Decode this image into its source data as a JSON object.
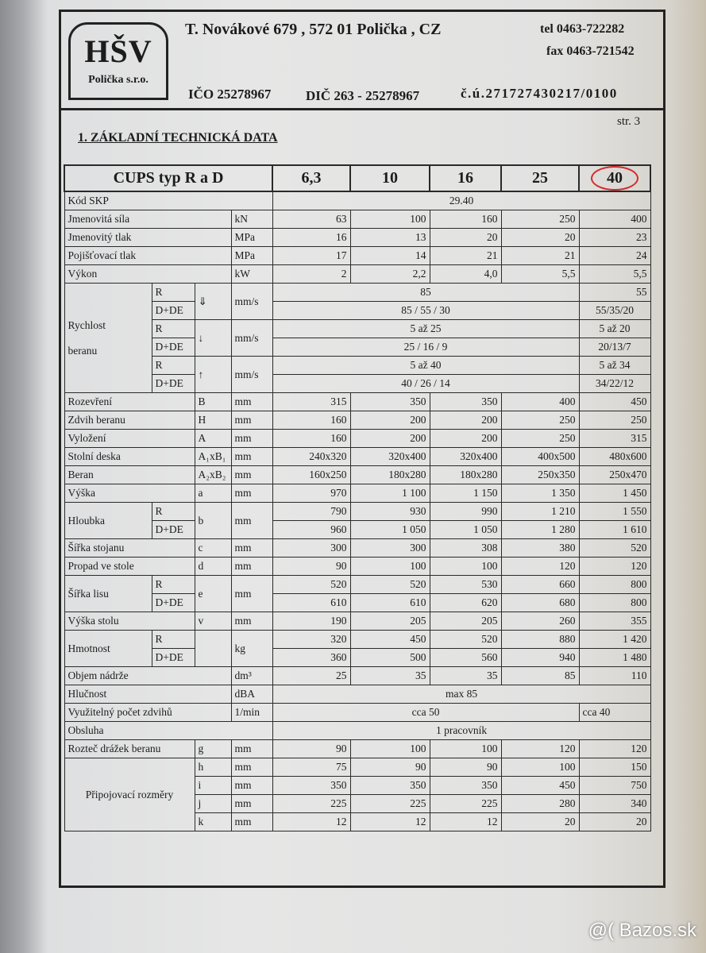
{
  "company": {
    "logo_main": "HŠV",
    "logo_sub": "Polička s.r.o.",
    "address": "T. Novákové 679 ,  572 01 Polička ,  CZ",
    "tel": "tel 0463-722282",
    "fax": "fax 0463-721542",
    "ico": "IČO 25278967",
    "dic": "DIČ  263 - 25278967",
    "account": "č.ú.271727430217/0100"
  },
  "page_number": "str. 3",
  "section_title": "1. ZÁKLADNÍ TECHNICKÁ DATA",
  "highlight_color": "#d42a2a",
  "table": {
    "header": {
      "title": "CUPS typ R a D",
      "models": [
        "6,3",
        "10",
        "16",
        "25",
        "40"
      ],
      "circled_model": "40"
    },
    "rows": [
      {
        "cells": [
          {
            "t": "Kód SKP",
            "span": 4
          },
          {
            "t": "29.40",
            "span": 5,
            "a": "c"
          }
        ]
      },
      {
        "cells": [
          {
            "t": "Jmenovitá síla",
            "span": 3
          },
          {
            "t": "kN"
          },
          {
            "t": "63"
          },
          {
            "t": "100"
          },
          {
            "t": "160"
          },
          {
            "t": "250"
          },
          {
            "t": "400"
          }
        ]
      },
      {
        "cells": [
          {
            "t": "Jmenovitý tlak",
            "span": 3
          },
          {
            "t": "MPa"
          },
          {
            "t": "16"
          },
          {
            "t": "13"
          },
          {
            "t": "20"
          },
          {
            "t": "20"
          },
          {
            "t": "23"
          }
        ]
      },
      {
        "cells": [
          {
            "t": "Pojišťovací tlak",
            "span": 3
          },
          {
            "t": "MPa"
          },
          {
            "t": "17"
          },
          {
            "t": "14"
          },
          {
            "t": "21"
          },
          {
            "t": "21"
          },
          {
            "t": "24"
          }
        ]
      },
      {
        "cells": [
          {
            "t": "Výkon",
            "span": 3
          },
          {
            "t": "kW"
          },
          {
            "t": "2"
          },
          {
            "t": "2,2"
          },
          {
            "t": "4,0"
          },
          {
            "t": "5,5"
          },
          {
            "t": "5,5"
          }
        ]
      },
      {
        "cells": [
          {
            "t": "Rychlost\n\nberanu",
            "rows": 6
          },
          {
            "t": "R"
          },
          {
            "t": "⇓",
            "rows": 2
          },
          {
            "t": "mm/s",
            "rows": 2
          },
          {
            "t": "85",
            "span": 4,
            "a": "c"
          },
          {
            "t": "55"
          }
        ]
      },
      {
        "cells": [
          {
            "t": "D+DE"
          },
          {
            "t": "85 / 55 / 30",
            "span": 4,
            "a": "c"
          },
          {
            "t": "55/35/20",
            "a": "c"
          }
        ]
      },
      {
        "cells": [
          {
            "t": "R"
          },
          {
            "t": "↓",
            "rows": 2
          },
          {
            "t": "mm/s",
            "rows": 2
          },
          {
            "t": "5 až 25",
            "span": 4,
            "a": "c"
          },
          {
            "t": "5 až 20",
            "a": "c"
          }
        ]
      },
      {
        "cells": [
          {
            "t": "D+DE"
          },
          {
            "t": "25 / 16 / 9",
            "span": 4,
            "a": "c"
          },
          {
            "t": "20/13/7",
            "a": "c"
          }
        ]
      },
      {
        "cells": [
          {
            "t": "R"
          },
          {
            "t": "↑",
            "rows": 2
          },
          {
            "t": "mm/s",
            "rows": 2
          },
          {
            "t": "5 až 40",
            "span": 4,
            "a": "c"
          },
          {
            "t": "5 až 34",
            "a": "c"
          }
        ]
      },
      {
        "cells": [
          {
            "t": "D+DE"
          },
          {
            "t": "40 / 26 / 14",
            "span": 4,
            "a": "c"
          },
          {
            "t": "34/22/12",
            "a": "c"
          }
        ]
      },
      {
        "cells": [
          {
            "t": "Rozevření",
            "span": 2
          },
          {
            "t": "B"
          },
          {
            "t": "mm"
          },
          {
            "t": "315"
          },
          {
            "t": "350"
          },
          {
            "t": "350"
          },
          {
            "t": "400"
          },
          {
            "t": "450"
          }
        ]
      },
      {
        "cells": [
          {
            "t": "Zdvih beranu",
            "span": 2
          },
          {
            "t": "H"
          },
          {
            "t": "mm"
          },
          {
            "t": "160"
          },
          {
            "t": "200"
          },
          {
            "t": "200"
          },
          {
            "t": "250"
          },
          {
            "t": "250"
          }
        ]
      },
      {
        "cells": [
          {
            "t": "Vyložení",
            "span": 2
          },
          {
            "t": "A"
          },
          {
            "t": "mm"
          },
          {
            "t": "160"
          },
          {
            "t": "200"
          },
          {
            "t": "200"
          },
          {
            "t": "250"
          },
          {
            "t": "315"
          }
        ]
      },
      {
        "cells": [
          {
            "t": "Stolní deska",
            "span": 2
          },
          {
            "t": "A₁xB₁"
          },
          {
            "t": "mm"
          },
          {
            "t": "240x320"
          },
          {
            "t": "320x400"
          },
          {
            "t": "320x400"
          },
          {
            "t": "400x500"
          },
          {
            "t": "480x600"
          }
        ]
      },
      {
        "cells": [
          {
            "t": "Beran",
            "span": 2
          },
          {
            "t": "A₂xB₂"
          },
          {
            "t": "mm"
          },
          {
            "t": "160x250"
          },
          {
            "t": "180x280"
          },
          {
            "t": "180x280"
          },
          {
            "t": "250x350"
          },
          {
            "t": "250x470"
          }
        ]
      },
      {
        "cells": [
          {
            "t": "Výška",
            "span": 2
          },
          {
            "t": "a"
          },
          {
            "t": "mm"
          },
          {
            "t": "970"
          },
          {
            "t": "1 100"
          },
          {
            "t": "1 150"
          },
          {
            "t": "1 350"
          },
          {
            "t": "1 450"
          }
        ]
      },
      {
        "cells": [
          {
            "t": "Hloubka",
            "rows": 2
          },
          {
            "t": "R"
          },
          {
            "t": "b",
            "rows": 2
          },
          {
            "t": "mm",
            "rows": 2
          },
          {
            "t": "790"
          },
          {
            "t": "930"
          },
          {
            "t": "990"
          },
          {
            "t": "1 210"
          },
          {
            "t": "1 550"
          }
        ]
      },
      {
        "cells": [
          {
            "t": "D+DE"
          },
          {
            "t": "960"
          },
          {
            "t": "1 050"
          },
          {
            "t": "1 050"
          },
          {
            "t": "1 280"
          },
          {
            "t": "1 610"
          }
        ]
      },
      {
        "cells": [
          {
            "t": "Šířka stojanu",
            "span": 2
          },
          {
            "t": "c"
          },
          {
            "t": "mm"
          },
          {
            "t": "300"
          },
          {
            "t": "300"
          },
          {
            "t": "308"
          },
          {
            "t": "380"
          },
          {
            "t": "520"
          }
        ]
      },
      {
        "cells": [
          {
            "t": "Propad ve stole",
            "span": 2
          },
          {
            "t": "d"
          },
          {
            "t": "mm"
          },
          {
            "t": "90"
          },
          {
            "t": "100"
          },
          {
            "t": "100"
          },
          {
            "t": "120"
          },
          {
            "t": "120"
          }
        ]
      },
      {
        "cells": [
          {
            "t": "Šířka lisu",
            "rows": 2
          },
          {
            "t": "R"
          },
          {
            "t": "e",
            "rows": 2
          },
          {
            "t": "mm",
            "rows": 2
          },
          {
            "t": "520"
          },
          {
            "t": "520"
          },
          {
            "t": "530"
          },
          {
            "t": "660"
          },
          {
            "t": "800"
          }
        ]
      },
      {
        "cells": [
          {
            "t": "D+DE"
          },
          {
            "t": "610"
          },
          {
            "t": "610"
          },
          {
            "t": "620"
          },
          {
            "t": "680"
          },
          {
            "t": "800"
          }
        ]
      },
      {
        "cells": [
          {
            "t": "Výška stolu",
            "span": 2
          },
          {
            "t": "v"
          },
          {
            "t": "mm"
          },
          {
            "t": "190"
          },
          {
            "t": "205"
          },
          {
            "t": "205"
          },
          {
            "t": "260"
          },
          {
            "t": "355"
          }
        ]
      },
      {
        "cells": [
          {
            "t": "Hmotnost",
            "rows": 2
          },
          {
            "t": "R"
          },
          {
            "t": "",
            "rows": 2
          },
          {
            "t": "kg",
            "rows": 2
          },
          {
            "t": "320"
          },
          {
            "t": "450"
          },
          {
            "t": "520"
          },
          {
            "t": "880"
          },
          {
            "t": "1 420"
          }
        ]
      },
      {
        "cells": [
          {
            "t": "D+DE"
          },
          {
            "t": "360"
          },
          {
            "t": "500"
          },
          {
            "t": "560"
          },
          {
            "t": "940"
          },
          {
            "t": "1 480"
          }
        ]
      },
      {
        "cells": [
          {
            "t": "Objem nádrže",
            "span": 3
          },
          {
            "t": "dm³"
          },
          {
            "t": "25"
          },
          {
            "t": "35"
          },
          {
            "t": "35"
          },
          {
            "t": "85"
          },
          {
            "t": "110"
          }
        ]
      },
      {
        "cells": [
          {
            "t": "Hlučnost",
            "span": 3
          },
          {
            "t": "dBA"
          },
          {
            "t": "max 85",
            "span": 5,
            "a": "c"
          }
        ]
      },
      {
        "cells": [
          {
            "t": "Využitelný počet zdvihů",
            "span": 3
          },
          {
            "t": "1/min"
          },
          {
            "t": "cca 50",
            "span": 4,
            "a": "c"
          },
          {
            "t": "cca 40"
          }
        ]
      },
      {
        "cells": [
          {
            "t": "Obsluha",
            "span": 4
          },
          {
            "t": "1 pracovník",
            "span": 5,
            "a": "c"
          }
        ]
      },
      {
        "cells": [
          {
            "t": "Rozteč drážek beranu",
            "span": 2
          },
          {
            "t": "g"
          },
          {
            "t": "mm"
          },
          {
            "t": "90"
          },
          {
            "t": "100"
          },
          {
            "t": "100"
          },
          {
            "t": "120"
          },
          {
            "t": "120"
          }
        ]
      },
      {
        "cells": [
          {
            "t": "Připojovací rozměry",
            "span": 2,
            "rows": 5,
            "a": "c"
          },
          {
            "t": "h"
          },
          {
            "t": "mm"
          },
          {
            "t": "75"
          },
          {
            "t": "90"
          },
          {
            "t": "90"
          },
          {
            "t": "100"
          },
          {
            "t": "150"
          }
        ]
      },
      {
        "cells": [
          {
            "t": "i"
          },
          {
            "t": "mm"
          },
          {
            "t": "350"
          },
          {
            "t": "350"
          },
          {
            "t": "350"
          },
          {
            "t": "450"
          },
          {
            "t": "750"
          }
        ]
      },
      {
        "cells": [
          {
            "t": "j"
          },
          {
            "t": "mm"
          },
          {
            "t": "225"
          },
          {
            "t": "225"
          },
          {
            "t": "225"
          },
          {
            "t": "280"
          },
          {
            "t": "340"
          }
        ]
      },
      {
        "cells": [
          {
            "t": "k"
          },
          {
            "t": "mm"
          },
          {
            "t": "12"
          },
          {
            "t": "12"
          },
          {
            "t": "12"
          },
          {
            "t": "20"
          },
          {
            "t": "20"
          }
        ]
      }
    ]
  },
  "watermark": "@( Bazos.sk"
}
